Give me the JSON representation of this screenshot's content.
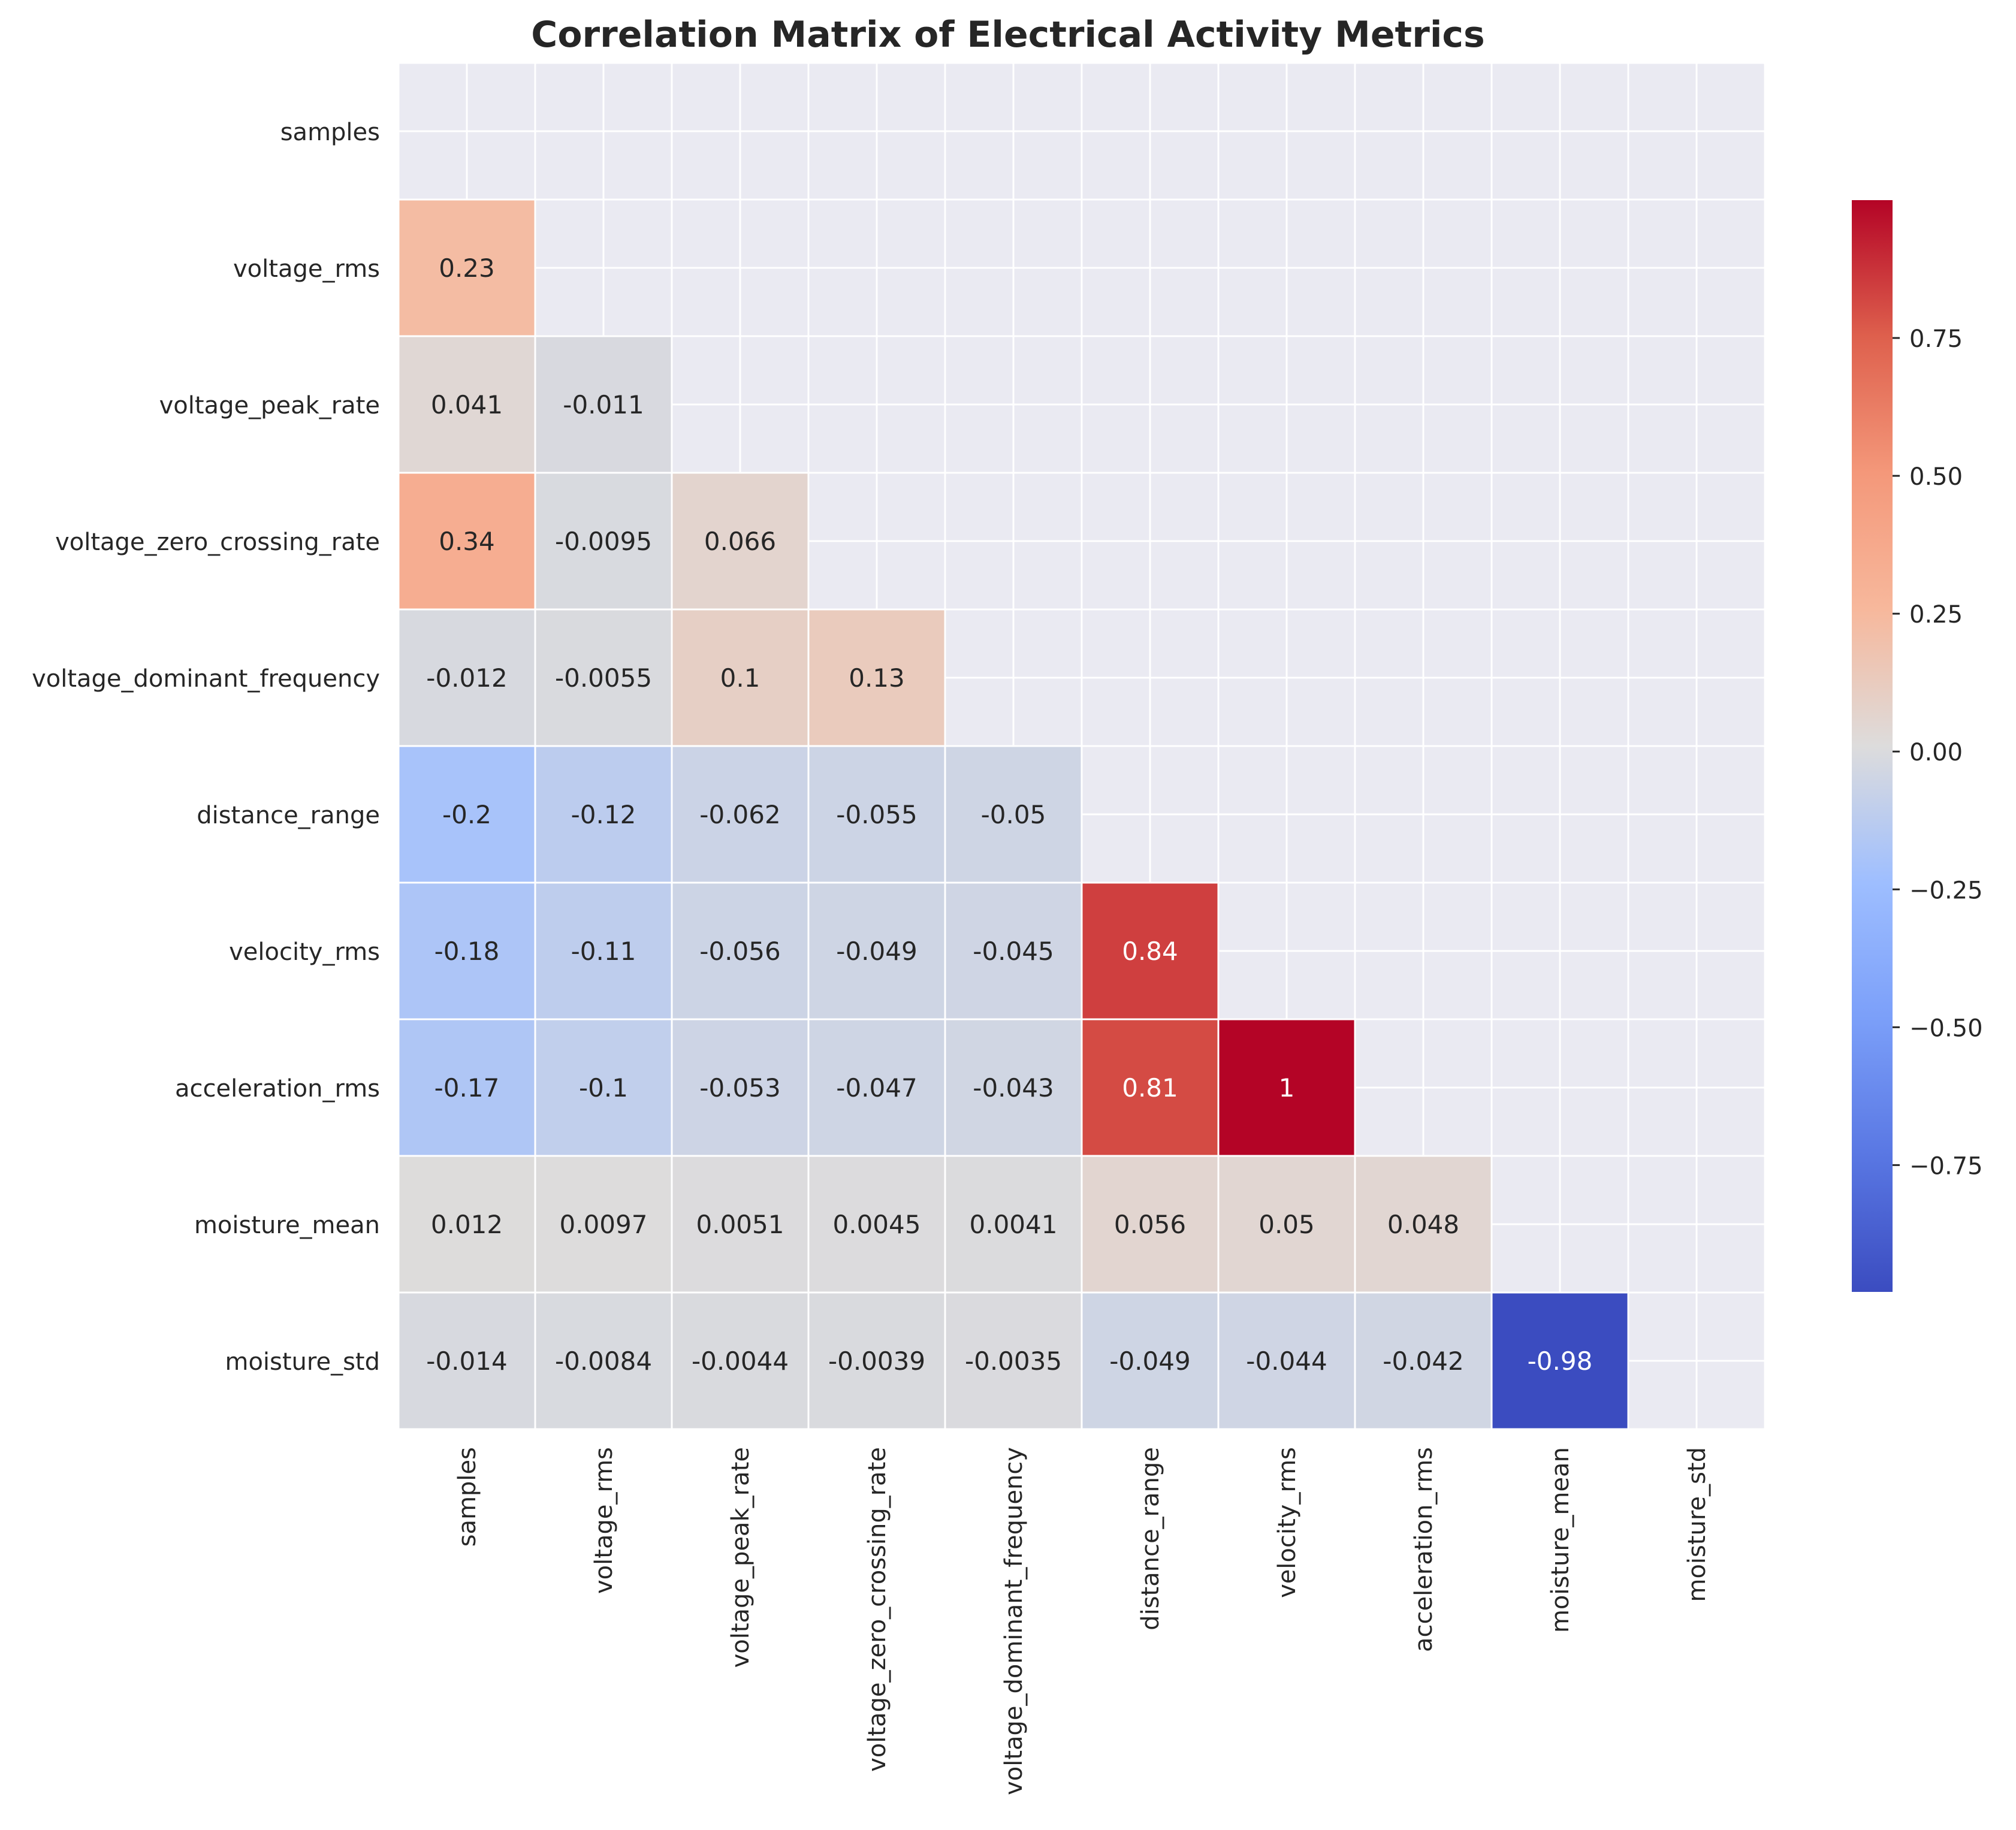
{
  "chart_data": {
    "type": "heatmap",
    "title": "Correlation Matrix of Electrical Activity Metrics",
    "xlabel": "",
    "ylabel": "",
    "labels": [
      "samples",
      "voltage_rms",
      "voltage_peak_rate",
      "voltage_zero_crossing_rate",
      "voltage_dominant_frequency",
      "distance_range",
      "velocity_rms",
      "acceleration_rms",
      "moisture_mean",
      "moisture_std"
    ],
    "mask": "upper-triangle-including-diagonal",
    "values": [
      [
        null,
        null,
        null,
        null,
        null,
        null,
        null,
        null,
        null,
        null
      ],
      [
        "0.23",
        null,
        null,
        null,
        null,
        null,
        null,
        null,
        null,
        null
      ],
      [
        "0.041",
        "-0.011",
        null,
        null,
        null,
        null,
        null,
        null,
        null,
        null
      ],
      [
        "0.34",
        "-0.0095",
        "0.066",
        null,
        null,
        null,
        null,
        null,
        null,
        null
      ],
      [
        "-0.012",
        "-0.0055",
        "0.1",
        "0.13",
        null,
        null,
        null,
        null,
        null,
        null
      ],
      [
        "-0.2",
        "-0.12",
        "-0.062",
        "-0.055",
        "-0.05",
        null,
        null,
        null,
        null,
        null
      ],
      [
        "-0.18",
        "-0.11",
        "-0.056",
        "-0.049",
        "-0.045",
        "0.84",
        null,
        null,
        null,
        null
      ],
      [
        "-0.17",
        "-0.1",
        "-0.053",
        "-0.047",
        "-0.043",
        "0.81",
        "1",
        null,
        null,
        null
      ],
      [
        "0.012",
        "0.0097",
        "0.0051",
        "0.0045",
        "0.0041",
        "0.056",
        "0.05",
        "0.048",
        null,
        null
      ],
      [
        "-0.014",
        "-0.0084",
        "-0.0044",
        "-0.0039",
        "-0.0035",
        "-0.049",
        "-0.044",
        "-0.042",
        "-0.98",
        null
      ]
    ],
    "colorscale": "coolwarm",
    "vlim": [
      -0.98,
      1
    ],
    "colorbar": {
      "ticks": [
        0.75,
        0.5,
        0.25,
        0.0,
        -0.25,
        -0.5,
        -0.75
      ],
      "tick_labels": [
        "0.75",
        "0.50",
        "0.25",
        "0.00",
        "−0.25",
        "−0.50",
        "−0.75"
      ]
    },
    "grid": true,
    "legend": "colorbar-right"
  }
}
